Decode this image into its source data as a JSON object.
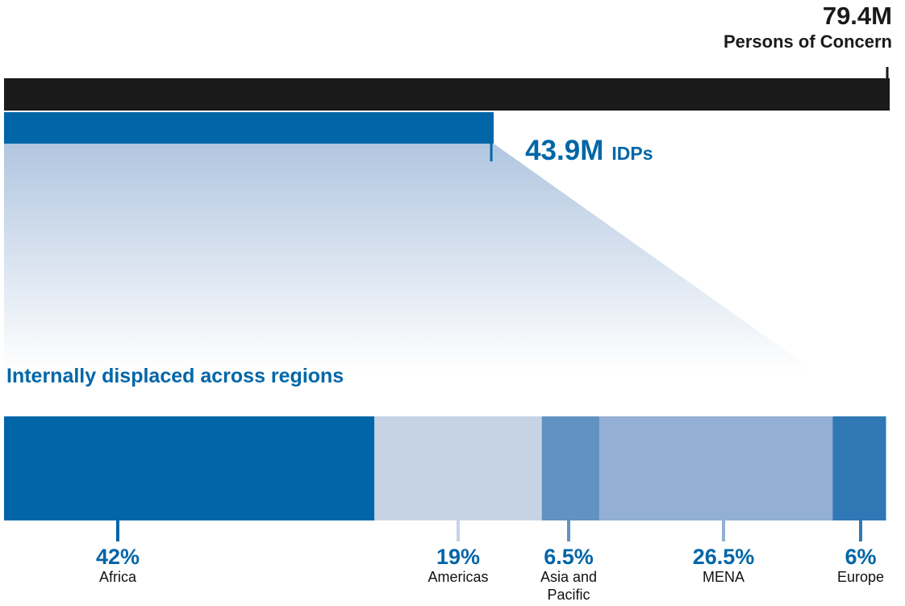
{
  "chart_data": [
    {
      "type": "bar",
      "categories": [
        "Persons of Concern",
        "IDPs"
      ],
      "values": [
        79.4,
        43.9
      ],
      "value_labels": [
        "79.4M",
        "43.9M"
      ],
      "colors": [
        "#1a1a1a",
        "#0066a8"
      ]
    },
    {
      "type": "stacked_bar",
      "title": "Internally displaced across regions",
      "categories": [
        "Africa",
        "Americas",
        "Asia and Pacific",
        "MENA",
        "Europe"
      ],
      "values": [
        42,
        19,
        6.5,
        26.5,
        6
      ],
      "value_labels": [
        "42%",
        "19%",
        "6.5%",
        "26.5%",
        "6%"
      ],
      "colors": [
        "#0066a8",
        "#c5d3e5",
        "#6292c2",
        "#93afd3",
        "#2f78b5"
      ]
    }
  ]
}
